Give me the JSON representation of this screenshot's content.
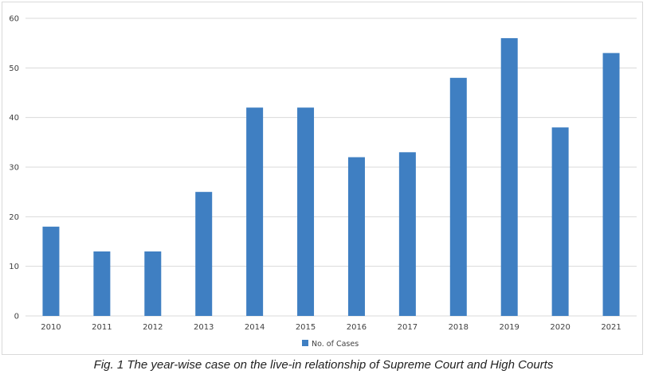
{
  "chart_data": {
    "type": "bar",
    "categories": [
      "2010",
      "2011",
      "2012",
      "2013",
      "2014",
      "2015",
      "2016",
      "2017",
      "2018",
      "2019",
      "2020",
      "2021"
    ],
    "series": [
      {
        "name": "No. of Cases",
        "values": [
          18,
          13,
          13,
          25,
          42,
          42,
          32,
          33,
          48,
          56,
          38,
          53
        ]
      }
    ],
    "title": "",
    "xlabel": "",
    "ylabel": "",
    "ylim": [
      0,
      60
    ],
    "yticks": [
      0,
      10,
      20,
      30,
      40,
      50,
      60
    ],
    "grid": true,
    "legend_position": "bottom",
    "colors": {
      "bar": "#3f7fc2",
      "grid": "#d9d9d9",
      "axis_text": "#404040"
    }
  },
  "caption": "Fig. 1 The year-wise case on the live-in relationship of Supreme Court and High Courts"
}
